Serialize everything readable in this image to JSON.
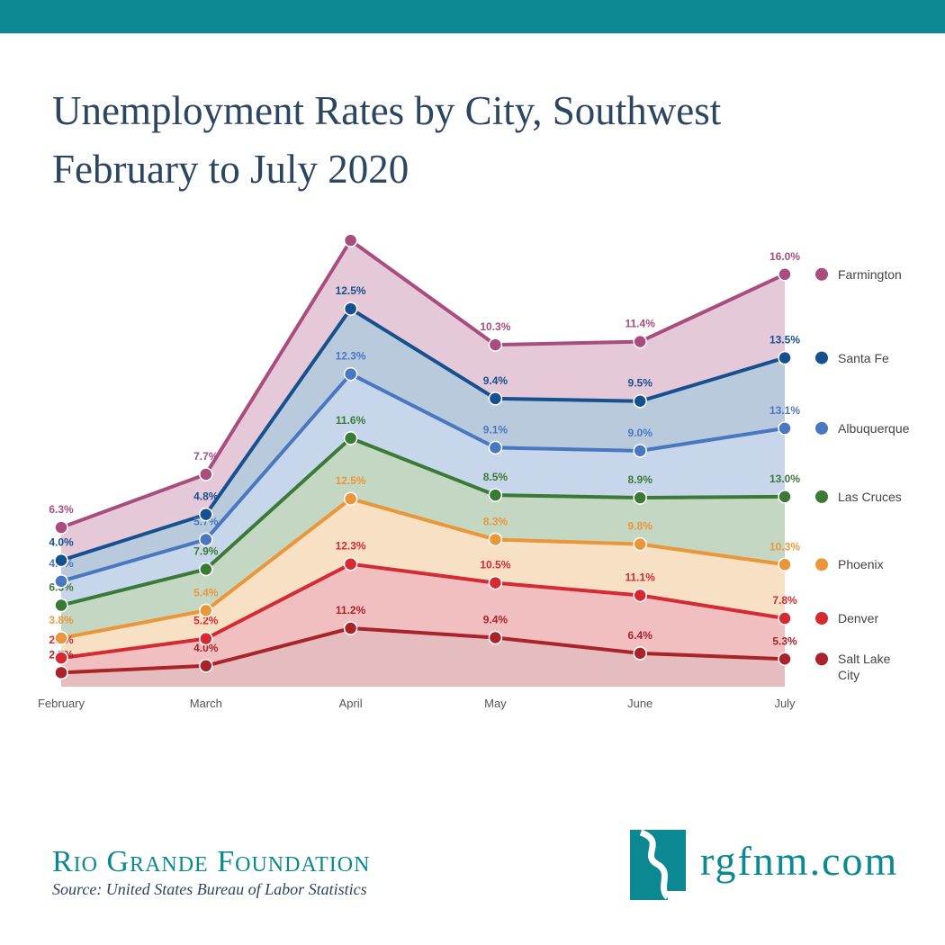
{
  "chart_data": {
    "type": "stacked-area",
    "title": "Unemployment Rates by City, Southwest",
    "subtitle": "February to July 2020",
    "categories": [
      "February",
      "March",
      "April",
      "May",
      "June",
      "July"
    ],
    "ylim": [
      0,
      88
    ],
    "series": [
      {
        "name": "Salt Lake City",
        "color": "#a8232a",
        "values": [
          2.7,
          4.0,
          11.2,
          9.4,
          6.4,
          5.3
        ],
        "value_labels": [
          "2.7%",
          "4.0%",
          "11.2%",
          "9.4%",
          "6.4%",
          "5.3%"
        ]
      },
      {
        "name": "Denver",
        "color": "#d52a33",
        "values": [
          2.8,
          5.2,
          12.3,
          10.5,
          11.1,
          7.8
        ],
        "value_labels": [
          "2.8%",
          "5.2%",
          "12.3%",
          "10.5%",
          "11.1%",
          "7.8%"
        ]
      },
      {
        "name": "Phoenix",
        "color": "#e9973a",
        "values": [
          3.8,
          5.4,
          12.5,
          8.3,
          9.8,
          10.3
        ],
        "value_labels": [
          "3.8%",
          "5.4%",
          "12.5%",
          "8.3%",
          "9.8%",
          "10.3%"
        ]
      },
      {
        "name": "Las Cruces",
        "color": "#3b7a36",
        "values": [
          6.3,
          7.9,
          11.6,
          8.5,
          8.9,
          13.0
        ],
        "value_labels": [
          "6.3%",
          "7.9%",
          "11.6%",
          "8.5%",
          "8.9%",
          "13.0%"
        ]
      },
      {
        "name": "Albuquerque",
        "color": "#4a78c0",
        "values": [
          4.6,
          5.7,
          12.3,
          9.1,
          9.0,
          13.1
        ],
        "value_labels": [
          "4.6%",
          "5.7%",
          "12.3%",
          "9.1%",
          "9.0%",
          "13.1%"
        ]
      },
      {
        "name": "Santa Fe",
        "color": "#16508f",
        "values": [
          4.0,
          4.8,
          12.5,
          9.4,
          9.5,
          13.5
        ],
        "value_labels": [
          "4.0%",
          "4.8%",
          "12.5%",
          "9.4%",
          "9.5%",
          "13.5%"
        ]
      },
      {
        "name": "Farmington",
        "color": "#a84d7e",
        "values": [
          6.3,
          7.7,
          13.1,
          10.3,
          11.4,
          16.0
        ],
        "value_labels": [
          "6.3%",
          "7.7%",
          null,
          "10.3%",
          "11.4%",
          "16.0%"
        ]
      }
    ]
  },
  "footer": {
    "organization": "Rio Grande Foundation",
    "source": "Source: United States Bureau of Labor Statistics",
    "website": "rgfnm.com"
  }
}
